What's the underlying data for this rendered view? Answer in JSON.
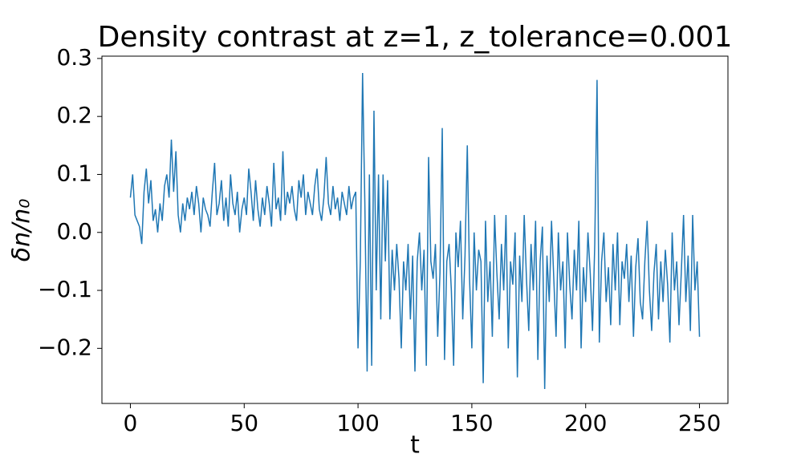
{
  "chart_data": {
    "type": "line",
    "title": "Density contrast at z=1, z_tolerance=0.001",
    "xlabel": "t",
    "ylabel": "δn/n₀",
    "x": [
      0,
      1,
      2,
      3,
      4,
      5,
      6,
      7,
      8,
      9,
      10,
      11,
      12,
      13,
      14,
      15,
      16,
      17,
      18,
      19,
      20,
      21,
      22,
      23,
      24,
      25,
      26,
      27,
      28,
      29,
      30,
      31,
      32,
      33,
      34,
      35,
      36,
      37,
      38,
      39,
      40,
      41,
      42,
      43,
      44,
      45,
      46,
      47,
      48,
      49,
      50,
      51,
      52,
      53,
      54,
      55,
      56,
      57,
      58,
      59,
      60,
      61,
      62,
      63,
      64,
      65,
      66,
      67,
      68,
      69,
      70,
      71,
      72,
      73,
      74,
      75,
      76,
      77,
      78,
      79,
      80,
      81,
      82,
      83,
      84,
      85,
      86,
      87,
      88,
      89,
      90,
      91,
      92,
      93,
      94,
      95,
      96,
      97,
      98,
      99,
      100,
      101,
      102,
      103,
      104,
      105,
      106,
      107,
      108,
      109,
      110,
      111,
      112,
      113,
      114,
      115,
      116,
      117,
      118,
      119,
      120,
      121,
      122,
      123,
      124,
      125,
      126,
      127,
      128,
      129,
      130,
      131,
      132,
      133,
      134,
      135,
      136,
      137,
      138,
      139,
      140,
      141,
      142,
      143,
      144,
      145,
      146,
      147,
      148,
      149,
      150,
      151,
      152,
      153,
      154,
      155,
      156,
      157,
      158,
      159,
      160,
      161,
      162,
      163,
      164,
      165,
      166,
      167,
      168,
      169,
      170,
      171,
      172,
      173,
      174,
      175,
      176,
      177,
      178,
      179,
      180,
      181,
      182,
      183,
      184,
      185,
      186,
      187,
      188,
      189,
      190,
      191,
      192,
      193,
      194,
      195,
      196,
      197,
      198,
      199,
      200,
      201,
      202,
      203,
      204,
      205,
      206,
      207,
      208,
      209,
      210,
      211,
      212,
      213,
      214,
      215,
      216,
      217,
      218,
      219,
      220,
      221,
      222,
      223,
      224,
      225,
      226,
      227,
      228,
      229,
      230,
      231,
      232,
      233,
      234,
      235,
      236,
      237,
      238,
      239,
      240,
      241,
      242,
      243,
      244,
      245,
      246,
      247,
      248,
      249,
      250
    ],
    "series": [
      {
        "name": "δn/n₀",
        "color": "#1f77b4",
        "values": [
          0.06,
          0.1,
          0.03,
          0.02,
          0.01,
          -0.02,
          0.07,
          0.11,
          0.05,
          0.09,
          0.02,
          0.04,
          0.0,
          0.05,
          0.02,
          0.08,
          0.1,
          0.06,
          0.16,
          0.07,
          0.14,
          0.03,
          0.0,
          0.05,
          0.02,
          0.06,
          0.04,
          0.07,
          0.03,
          0.08,
          0.05,
          0.0,
          0.06,
          0.04,
          0.03,
          0.01,
          0.07,
          0.12,
          0.03,
          0.05,
          0.09,
          0.02,
          0.06,
          0.01,
          0.1,
          0.05,
          0.03,
          0.07,
          0.0,
          0.04,
          0.06,
          0.03,
          0.11,
          0.07,
          0.02,
          0.09,
          0.04,
          0.01,
          0.06,
          0.03,
          0.08,
          0.05,
          0.01,
          0.12,
          0.04,
          0.06,
          0.02,
          0.14,
          0.03,
          0.07,
          0.05,
          0.08,
          0.04,
          0.02,
          0.09,
          0.06,
          0.1,
          0.03,
          0.07,
          0.05,
          0.03,
          0.08,
          0.11,
          0.04,
          0.02,
          0.06,
          0.13,
          0.05,
          0.03,
          0.08,
          0.04,
          0.06,
          0.02,
          0.07,
          0.05,
          0.03,
          0.08,
          0.04,
          0.06,
          0.07,
          -0.2,
          -0.05,
          0.275,
          0.05,
          -0.24,
          0.1,
          -0.23,
          0.21,
          -0.1,
          0.1,
          -0.15,
          0.1,
          -0.05,
          0.09,
          -0.15,
          -0.03,
          -0.1,
          -0.02,
          -0.08,
          -0.2,
          -0.05,
          -0.1,
          -0.02,
          -0.15,
          -0.04,
          -0.24,
          -0.05,
          0.0,
          -0.1,
          -0.03,
          -0.23,
          0.13,
          -0.05,
          -0.08,
          -0.02,
          -0.18,
          -0.07,
          0.18,
          -0.22,
          -0.05,
          -0.02,
          -0.1,
          -0.23,
          0.0,
          -0.06,
          0.02,
          -0.15,
          -0.04,
          0.15,
          -0.08,
          -0.2,
          0.0,
          -0.1,
          -0.03,
          -0.05,
          -0.26,
          0.02,
          -0.12,
          -0.05,
          -0.18,
          0.03,
          -0.07,
          -0.15,
          -0.02,
          -0.1,
          0.03,
          -0.2,
          -0.05,
          -0.09,
          0.0,
          -0.25,
          -0.04,
          -0.12,
          0.03,
          -0.08,
          -0.17,
          -0.02,
          -0.1,
          0.02,
          -0.22,
          -0.05,
          0.01,
          -0.27,
          -0.04,
          -0.12,
          0.02,
          -0.08,
          -0.18,
          0.0,
          -0.1,
          -0.05,
          -0.2,
          0.0,
          -0.09,
          -0.15,
          -0.03,
          -0.1,
          0.02,
          -0.2,
          -0.06,
          -0.12,
          0.0,
          -0.07,
          -0.17,
          -0.02,
          0.263,
          -0.19,
          -0.05,
          0.0,
          -0.12,
          -0.06,
          -0.16,
          -0.02,
          -0.1,
          0.0,
          -0.16,
          -0.05,
          -0.08,
          -0.02,
          -0.12,
          -0.04,
          -0.18,
          -0.06,
          -0.01,
          -0.12,
          -0.15,
          -0.05,
          0.02,
          -0.1,
          -0.17,
          -0.07,
          -0.02,
          -0.15,
          -0.05,
          -0.12,
          -0.03,
          -0.09,
          -0.19,
          0.0,
          -0.1,
          -0.05,
          -0.16,
          -0.07,
          0.03,
          -0.12,
          -0.04,
          -0.17,
          0.03,
          -0.1,
          -0.05,
          -0.18
        ]
      }
    ],
    "xlim": [
      -12.5,
      262.5
    ],
    "ylim": [
      -0.295,
      0.304
    ],
    "xticks": [
      0,
      50,
      100,
      150,
      200,
      250
    ],
    "yticks": [
      {
        "value": -0.2,
        "label": "−0.2"
      },
      {
        "value": -0.1,
        "label": "−0.1"
      },
      {
        "value": 0,
        "label": "0.0"
      },
      0.1,
      0.2,
      0.3
    ]
  }
}
